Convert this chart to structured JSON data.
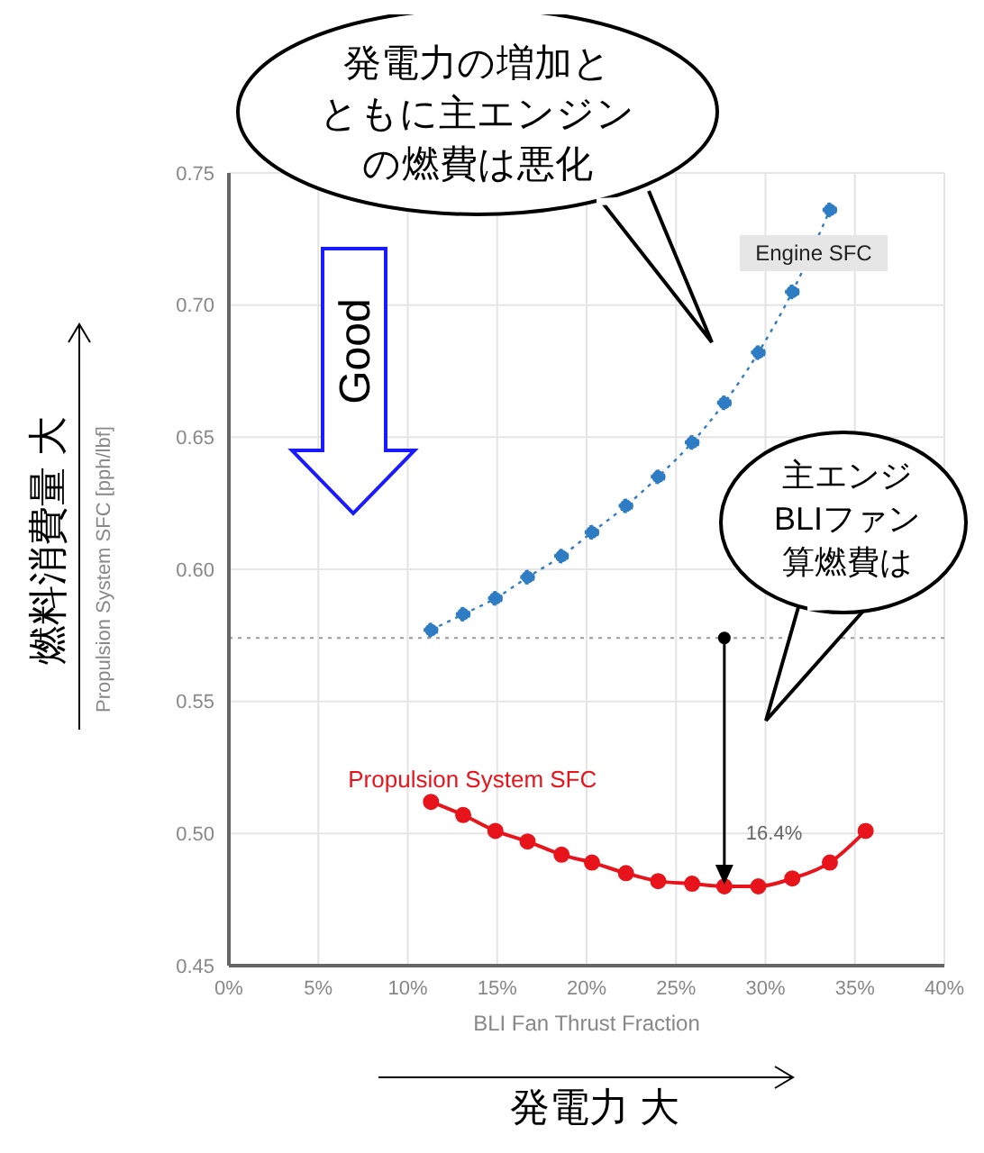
{
  "chart_data": {
    "type": "line",
    "xlabel": "BLI Fan Thrust Fraction",
    "ylabel": "Propulsion System SFC [pph/lbf]",
    "xlim": [
      0,
      40
    ],
    "xticks": [
      {
        "value": 0,
        "label": "0%"
      },
      {
        "value": 5,
        "label": "5%"
      },
      {
        "value": 10,
        "label": "10%"
      },
      {
        "value": 15,
        "label": "15%"
      },
      {
        "value": 20,
        "label": "20%"
      },
      {
        "value": 25,
        "label": "25%"
      },
      {
        "value": 30,
        "label": "30%"
      },
      {
        "value": 35,
        "label": "35%"
      },
      {
        "value": 40,
        "label": "40%"
      }
    ],
    "ylim": [
      0.45,
      0.75
    ],
    "yticks": [
      {
        "value": 0.45,
        "label": "0.45"
      },
      {
        "value": 0.5,
        "label": "0.50"
      },
      {
        "value": 0.55,
        "label": "0.55"
      },
      {
        "value": 0.6,
        "label": "0.60"
      },
      {
        "value": 0.65,
        "label": "0.65"
      },
      {
        "value": 0.7,
        "label": "0.70"
      },
      {
        "value": 0.75,
        "label": "0.75"
      }
    ],
    "grid": true,
    "legend": false,
    "marker": "circle",
    "series": [
      {
        "name": "Engine SFC",
        "color": "#2e7cc4",
        "line_style": "dotted",
        "x": [
          11.3,
          13.1,
          14.9,
          16.7,
          18.6,
          20.3,
          22.2,
          24.0,
          25.9,
          27.7,
          29.6,
          31.5,
          33.6
        ],
        "values": [
          0.577,
          0.583,
          0.589,
          0.597,
          0.605,
          0.614,
          0.624,
          0.635,
          0.648,
          0.663,
          0.682,
          0.705,
          0.736
        ]
      },
      {
        "name": "Propulsion System SFC",
        "color": "#e8141b",
        "line_style": "solid",
        "x": [
          11.3,
          13.1,
          14.9,
          16.7,
          18.6,
          20.3,
          22.2,
          24.0,
          25.9,
          27.7,
          29.6,
          31.5,
          33.6,
          35.6
        ],
        "values": [
          0.512,
          0.507,
          0.501,
          0.497,
          0.492,
          0.489,
          0.485,
          0.482,
          0.481,
          0.48,
          0.48,
          0.483,
          0.489,
          0.501
        ]
      }
    ],
    "ref_lines": [
      {
        "axis": "y",
        "value": 0.574,
        "color": "#999999",
        "line_style": "dotted"
      }
    ],
    "annotations": [
      "発電力の増加とともに主エンジンの燃費は悪化",
      "主エンジBLIファン算燃費は",
      "Good",
      "燃料消費量 大",
      "発電力 大",
      {
        "text": "16.4%",
        "x": 27.7,
        "y": 0.48
      }
    ]
  }
}
